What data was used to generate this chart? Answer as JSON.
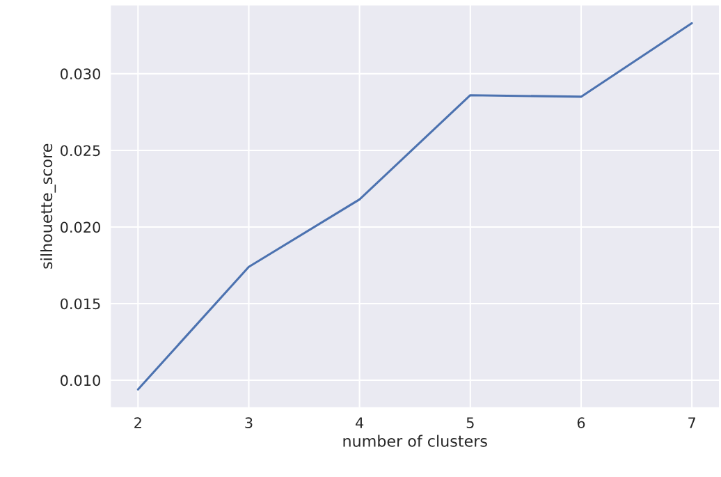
{
  "chart_data": {
    "type": "line",
    "xlabel": "number of clusters",
    "ylabel": "silhouette_score",
    "x": [
      2,
      3,
      4,
      5,
      6,
      7
    ],
    "series": [
      {
        "color": "#4c72b0",
        "values": [
          0.0094,
          0.0174,
          0.0218,
          0.0286,
          0.0285,
          0.0333
        ]
      }
    ],
    "xlim": [
      1.75,
      7.25
    ],
    "ylim": [
      0.0082,
      0.0345
    ],
    "xticks": [
      2,
      3,
      4,
      5,
      6,
      7
    ],
    "yticks": [
      {
        "value": 0.01,
        "label": "0.010"
      },
      {
        "value": 0.015,
        "label": "0.015"
      },
      {
        "value": 0.02,
        "label": "0.020"
      },
      {
        "value": 0.025,
        "label": "0.025"
      },
      {
        "value": 0.03,
        "label": "0.030"
      }
    ],
    "grid": true,
    "marker": "none",
    "line_style": "solid"
  }
}
